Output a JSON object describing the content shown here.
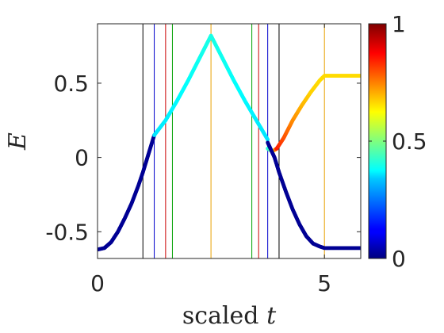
{
  "chart_data": {
    "type": "scatter",
    "xlabel_text": "scaled",
    "xlabel_var": "t",
    "ylabel": "E",
    "xlim": [
      0,
      5.8
    ],
    "ylim": [
      -0.68,
      0.9
    ],
    "xticks": [
      0,
      5
    ],
    "xtick_labels": [
      "0",
      "5"
    ],
    "yticks": [
      -0.5,
      0,
      0.5
    ],
    "ytick_labels": [
      "-0.5",
      "0",
      "0.5"
    ],
    "grid": false,
    "colorbar": {
      "colormap": "jet",
      "range": [
        0,
        1
      ],
      "tick_values": [
        0,
        0.5,
        1
      ],
      "tick_labels": [
        "0",
        "0.5",
        "1"
      ]
    },
    "vertical_lines": [
      {
        "x": 1.0,
        "color": "#000000"
      },
      {
        "x": 1.25,
        "color": "#0000cc"
      },
      {
        "x": 1.5,
        "color": "#cc0000"
      },
      {
        "x": 1.65,
        "color": "#00a000"
      },
      {
        "x": 2.5,
        "color": "#e8a000"
      },
      {
        "x": 3.4,
        "color": "#00a000"
      },
      {
        "x": 3.55,
        "color": "#cc0000"
      },
      {
        "x": 3.75,
        "color": "#0000cc"
      },
      {
        "x": 4.0,
        "color": "#000000"
      },
      {
        "x": 5.0,
        "color": "#e8a000"
      }
    ],
    "series": [
      {
        "x": [
          0.0,
          0.15,
          0.3,
          0.45,
          0.6,
          0.75,
          0.9,
          1.0,
          1.1,
          1.25
        ],
        "y": [
          -0.62,
          -0.61,
          -0.57,
          -0.5,
          -0.41,
          -0.31,
          -0.19,
          -0.1,
          0.0,
          0.15
        ],
        "c": [
          0.02,
          0.02,
          0.02,
          0.02,
          0.02,
          0.02,
          0.02,
          0.02,
          0.02,
          0.02
        ]
      },
      {
        "x": [
          1.25,
          1.5,
          1.75,
          2.0,
          2.25,
          2.5,
          2.75,
          3.0,
          3.25,
          3.5,
          3.75
        ],
        "y": [
          0.15,
          0.25,
          0.38,
          0.52,
          0.67,
          0.82,
          0.67,
          0.52,
          0.38,
          0.25,
          0.12
        ],
        "c": [
          0.35,
          0.36,
          0.37,
          0.38,
          0.39,
          0.4,
          0.39,
          0.38,
          0.37,
          0.36,
          0.35
        ]
      },
      {
        "x": [
          3.75,
          3.85,
          3.95,
          4.1,
          4.3,
          4.5,
          4.7,
          4.9,
          5.0,
          5.5,
          5.8
        ],
        "y": [
          0.06,
          0.04,
          0.06,
          0.13,
          0.25,
          0.35,
          0.44,
          0.52,
          0.55,
          0.55,
          0.55
        ],
        "c": [
          0.4,
          0.5,
          0.85,
          0.8,
          0.74,
          0.7,
          0.67,
          0.66,
          0.66,
          0.66,
          0.66
        ]
      },
      {
        "x": [
          3.75,
          3.9,
          4.0,
          4.15,
          4.3,
          4.45,
          4.6,
          4.75,
          4.9,
          5.0,
          5.5,
          5.8
        ],
        "y": [
          0.1,
          0.0,
          -0.1,
          -0.23,
          -0.35,
          -0.45,
          -0.53,
          -0.58,
          -0.6,
          -0.61,
          -0.61,
          -0.61
        ],
        "c": [
          0.02,
          0.02,
          0.02,
          0.02,
          0.02,
          0.02,
          0.02,
          0.02,
          0.02,
          0.02,
          0.02,
          0.02
        ]
      }
    ]
  }
}
